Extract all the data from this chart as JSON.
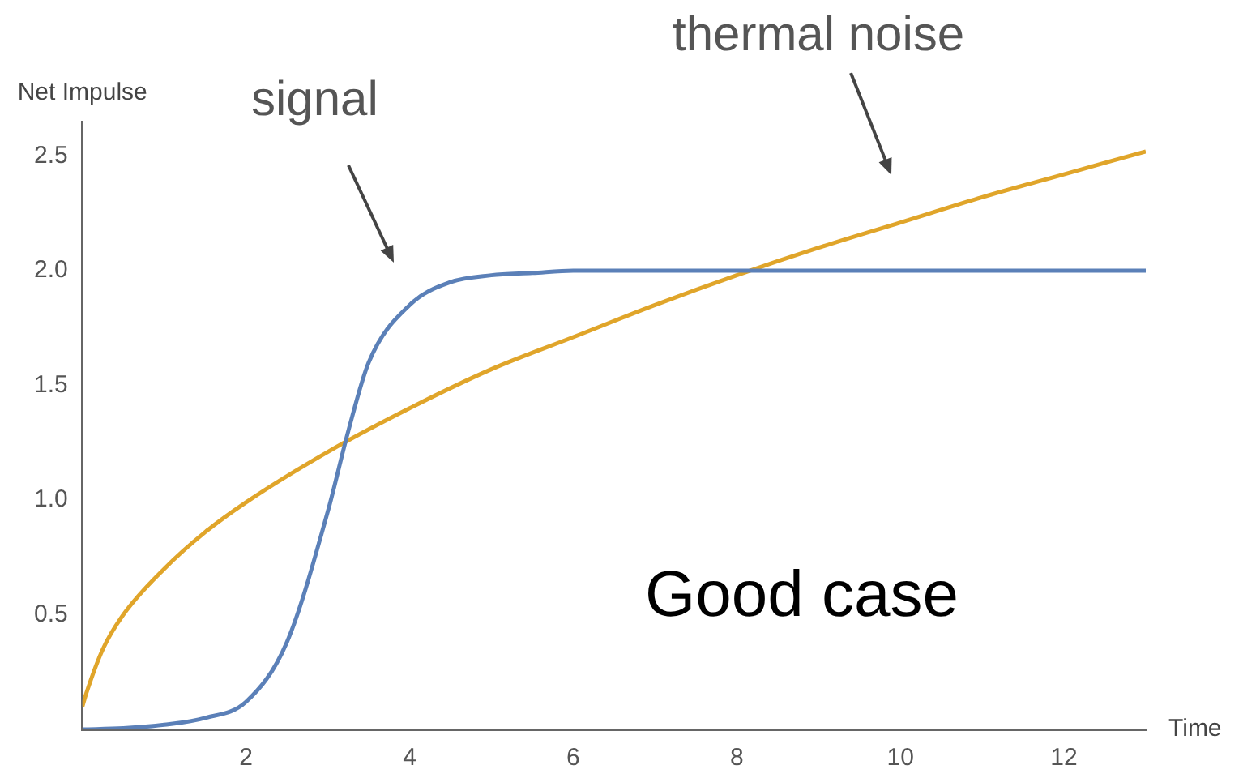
{
  "chart_data": {
    "type": "line",
    "xlabel": "Time",
    "ylabel": "Net Impulse",
    "xlim": [
      0,
      13
    ],
    "ylim": [
      0,
      2.65
    ],
    "xticks": [
      2,
      4,
      6,
      8,
      10,
      12
    ],
    "yticks": [
      0.5,
      {
        "value": 1,
        "label": "1.0"
      },
      1.5,
      {
        "value": 2,
        "label": "2.0"
      },
      2.5
    ],
    "grid": false,
    "legend": false,
    "marker": "none",
    "line_style": "solid",
    "annotations": [
      "signal",
      "thermal noise",
      "Good case"
    ],
    "series": [
      {
        "color": "#5b80b8",
        "x": [
          0,
          0.5,
          1,
          1.5,
          2,
          2.5,
          3,
          3.25,
          3.5,
          4,
          4.5,
          5,
          5.5,
          6,
          8,
          10,
          13
        ],
        "values": [
          0,
          0.005,
          0.02,
          0.05,
          0.12,
          0.38,
          0.95,
          1.3,
          1.6,
          1.85,
          1.95,
          1.98,
          1.99,
          2.0,
          2.0,
          2.0,
          2.0
        ]
      },
      {
        "color": "#e0a52a",
        "x": [
          0,
          0.05,
          0.25,
          0.5,
          1,
          1.5,
          2,
          3,
          4,
          5,
          6,
          7,
          8,
          9,
          10,
          11,
          12,
          13
        ],
        "values": [
          0.1,
          0.16,
          0.35,
          0.5,
          0.7,
          0.86,
          0.99,
          1.21,
          1.4,
          1.57,
          1.71,
          1.85,
          1.98,
          2.1,
          2.21,
          2.32,
          2.42,
          2.52
        ]
      }
    ]
  }
}
